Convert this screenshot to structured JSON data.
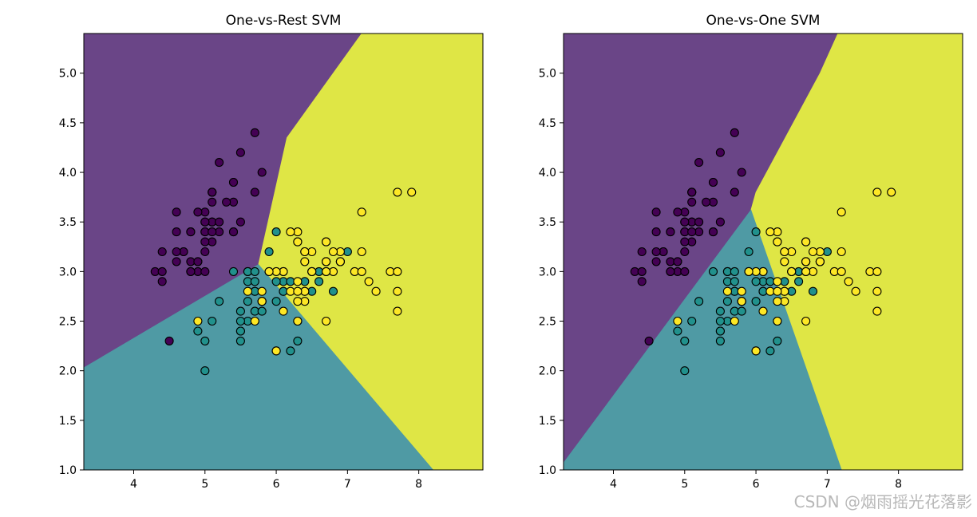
{
  "watermark": "CSDN @烟雨摇光花落影",
  "colors": {
    "region_purple": "#6a4587",
    "region_teal": "#4f9aa4",
    "region_yellow": "#dfe645",
    "pt_purple": "#440154",
    "pt_teal": "#21918c",
    "pt_yellow": "#fde725",
    "edge": "#000000"
  },
  "chart_data": [
    {
      "type": "scatter",
      "title": "One-vs-Rest SVM",
      "xlabel": "",
      "ylabel": "",
      "xlim": [
        3.3,
        8.9
      ],
      "ylim": [
        1.0,
        5.4
      ],
      "x_ticks": [
        4,
        5,
        6,
        7,
        8
      ],
      "y_ticks": [
        1.0,
        1.5,
        2.0,
        2.5,
        3.0,
        3.5,
        4.0,
        4.5,
        5.0
      ],
      "regions": [
        {
          "class": 0,
          "polygon": [
            [
              3.3,
              2.03
            ],
            [
              5.75,
              3.07
            ],
            [
              6.15,
              4.35
            ],
            [
              7.2,
              5.4
            ],
            [
              3.3,
              5.4
            ]
          ]
        },
        {
          "class": 2,
          "polygon": [
            [
              5.75,
              3.07
            ],
            [
              6.15,
              4.35
            ],
            [
              7.2,
              5.4
            ],
            [
              8.9,
              5.4
            ],
            [
              8.9,
              1.0
            ],
            [
              8.2,
              1.0
            ]
          ]
        },
        {
          "class": 1,
          "polygon": [
            [
              3.3,
              1.0
            ],
            [
              8.2,
              1.0
            ],
            [
              5.75,
              3.07
            ],
            [
              3.3,
              2.03
            ]
          ]
        }
      ]
    },
    {
      "type": "scatter",
      "title": "One-vs-One SVM",
      "xlabel": "",
      "ylabel": "",
      "xlim": [
        3.3,
        8.9
      ],
      "ylim": [
        1.0,
        5.4
      ],
      "x_ticks": [
        4,
        5,
        6,
        7,
        8
      ],
      "y_ticks": [
        1.0,
        1.5,
        2.0,
        2.5,
        3.0,
        3.5,
        4.0,
        4.5,
        5.0
      ],
      "regions": [
        {
          "class": 0,
          "polygon": [
            [
              3.3,
              1.07
            ],
            [
              5.93,
              3.62
            ],
            [
              6.0,
              3.8
            ],
            [
              6.9,
              5.0
            ],
            [
              7.15,
              5.4
            ],
            [
              3.3,
              5.4
            ]
          ]
        },
        {
          "class": 2,
          "polygon": [
            [
              5.93,
              3.62
            ],
            [
              6.0,
              3.8
            ],
            [
              6.9,
              5.0
            ],
            [
              7.15,
              5.4
            ],
            [
              8.9,
              5.4
            ],
            [
              8.9,
              1.0
            ],
            [
              7.2,
              1.0
            ]
          ]
        },
        {
          "class": 1,
          "polygon": [
            [
              3.3,
              1.0
            ],
            [
              7.2,
              1.0
            ],
            [
              5.93,
              3.62
            ],
            [
              3.3,
              1.07
            ]
          ]
        }
      ]
    }
  ],
  "points": [
    [
      5.1,
      3.5,
      0
    ],
    [
      4.9,
      3.0,
      0
    ],
    [
      4.7,
      3.2,
      0
    ],
    [
      4.6,
      3.1,
      0
    ],
    [
      5.0,
      3.6,
      0
    ],
    [
      5.4,
      3.9,
      0
    ],
    [
      4.6,
      3.4,
      0
    ],
    [
      5.0,
      3.4,
      0
    ],
    [
      4.4,
      2.9,
      0
    ],
    [
      4.9,
      3.1,
      0
    ],
    [
      5.4,
      3.7,
      0
    ],
    [
      4.8,
      3.4,
      0
    ],
    [
      4.8,
      3.0,
      0
    ],
    [
      4.3,
      3.0,
      0
    ],
    [
      5.8,
      4.0,
      0
    ],
    [
      5.7,
      4.4,
      0
    ],
    [
      5.4,
      3.9,
      0
    ],
    [
      5.1,
      3.5,
      0
    ],
    [
      5.7,
      3.8,
      0
    ],
    [
      5.1,
      3.8,
      0
    ],
    [
      5.4,
      3.4,
      0
    ],
    [
      5.1,
      3.7,
      0
    ],
    [
      4.6,
      3.6,
      0
    ],
    [
      5.1,
      3.3,
      0
    ],
    [
      4.8,
      3.4,
      0
    ],
    [
      5.0,
      3.0,
      0
    ],
    [
      5.0,
      3.4,
      0
    ],
    [
      5.2,
      3.5,
      0
    ],
    [
      5.2,
      3.4,
      0
    ],
    [
      4.7,
      3.2,
      0
    ],
    [
      4.8,
      3.1,
      0
    ],
    [
      5.4,
      3.4,
      0
    ],
    [
      5.2,
      4.1,
      0
    ],
    [
      5.5,
      4.2,
      0
    ],
    [
      4.9,
      3.1,
      0
    ],
    [
      5.0,
      3.2,
      0
    ],
    [
      5.5,
      3.5,
      0
    ],
    [
      4.9,
      3.6,
      0
    ],
    [
      4.4,
      3.0,
      0
    ],
    [
      5.1,
      3.4,
      0
    ],
    [
      5.0,
      3.5,
      0
    ],
    [
      4.5,
      2.3,
      0
    ],
    [
      4.4,
      3.2,
      0
    ],
    [
      5.0,
      3.5,
      0
    ],
    [
      5.1,
      3.8,
      0
    ],
    [
      4.8,
      3.0,
      0
    ],
    [
      5.1,
      3.8,
      0
    ],
    [
      4.6,
      3.2,
      0
    ],
    [
      5.3,
      3.7,
      0
    ],
    [
      5.0,
      3.3,
      0
    ],
    [
      7.0,
      3.2,
      1
    ],
    [
      6.4,
      3.2,
      1
    ],
    [
      6.9,
      3.1,
      1
    ],
    [
      5.5,
      2.3,
      1
    ],
    [
      6.5,
      2.8,
      1
    ],
    [
      5.7,
      2.8,
      1
    ],
    [
      6.3,
      3.3,
      1
    ],
    [
      4.9,
      2.4,
      1
    ],
    [
      6.6,
      2.9,
      1
    ],
    [
      5.2,
      2.7,
      1
    ],
    [
      5.0,
      2.0,
      1
    ],
    [
      5.9,
      3.0,
      1
    ],
    [
      6.0,
      2.2,
      1
    ],
    [
      6.1,
      2.9,
      1
    ],
    [
      5.6,
      2.9,
      1
    ],
    [
      6.7,
      3.1,
      1
    ],
    [
      5.6,
      3.0,
      1
    ],
    [
      5.8,
      2.7,
      1
    ],
    [
      6.2,
      2.2,
      1
    ],
    [
      5.6,
      2.5,
      1
    ],
    [
      5.9,
      3.2,
      1
    ],
    [
      6.1,
      2.8,
      1
    ],
    [
      6.3,
      2.5,
      1
    ],
    [
      6.1,
      2.8,
      1
    ],
    [
      6.4,
      2.9,
      1
    ],
    [
      6.6,
      3.0,
      1
    ],
    [
      6.8,
      2.8,
      1
    ],
    [
      6.7,
      3.0,
      1
    ],
    [
      6.0,
      2.9,
      1
    ],
    [
      5.7,
      2.6,
      1
    ],
    [
      5.5,
      2.4,
      1
    ],
    [
      5.5,
      2.4,
      1
    ],
    [
      5.8,
      2.7,
      1
    ],
    [
      6.0,
      2.7,
      1
    ],
    [
      5.4,
      3.0,
      1
    ],
    [
      6.0,
      3.4,
      1
    ],
    [
      6.7,
      3.1,
      1
    ],
    [
      6.3,
      2.3,
      1
    ],
    [
      5.6,
      3.0,
      1
    ],
    [
      5.5,
      2.5,
      1
    ],
    [
      5.5,
      2.6,
      1
    ],
    [
      6.1,
      3.0,
      1
    ],
    [
      5.8,
      2.6,
      1
    ],
    [
      5.0,
      2.3,
      1
    ],
    [
      5.6,
      2.7,
      1
    ],
    [
      5.7,
      3.0,
      1
    ],
    [
      5.7,
      2.9,
      1
    ],
    [
      6.2,
      2.9,
      1
    ],
    [
      5.1,
      2.5,
      1
    ],
    [
      5.7,
      2.8,
      1
    ],
    [
      6.3,
      3.3,
      2
    ],
    [
      5.8,
      2.7,
      2
    ],
    [
      7.1,
      3.0,
      2
    ],
    [
      6.3,
      2.9,
      2
    ],
    [
      6.5,
      3.0,
      2
    ],
    [
      7.6,
      3.0,
      2
    ],
    [
      4.9,
      2.5,
      2
    ],
    [
      7.3,
      2.9,
      2
    ],
    [
      6.7,
      2.5,
      2
    ],
    [
      7.2,
      3.6,
      2
    ],
    [
      6.5,
      3.2,
      2
    ],
    [
      6.4,
      2.7,
      2
    ],
    [
      6.8,
      3.0,
      2
    ],
    [
      5.7,
      2.5,
      2
    ],
    [
      5.8,
      2.8,
      2
    ],
    [
      6.4,
      3.2,
      2
    ],
    [
      6.5,
      3.0,
      2
    ],
    [
      7.7,
      3.8,
      2
    ],
    [
      7.7,
      2.6,
      2
    ],
    [
      6.0,
      2.2,
      2
    ],
    [
      6.9,
      3.2,
      2
    ],
    [
      5.6,
      2.8,
      2
    ],
    [
      7.7,
      2.8,
      2
    ],
    [
      6.3,
      2.7,
      2
    ],
    [
      6.7,
      3.3,
      2
    ],
    [
      7.2,
      3.2,
      2
    ],
    [
      6.2,
      2.8,
      2
    ],
    [
      6.1,
      3.0,
      2
    ],
    [
      6.4,
      2.8,
      2
    ],
    [
      7.2,
      3.0,
      2
    ],
    [
      7.4,
      2.8,
      2
    ],
    [
      7.9,
      3.8,
      2
    ],
    [
      6.4,
      2.8,
      2
    ],
    [
      6.3,
      2.8,
      2
    ],
    [
      6.1,
      2.6,
      2
    ],
    [
      7.7,
      3.0,
      2
    ],
    [
      6.3,
      3.4,
      2
    ],
    [
      6.4,
      3.1,
      2
    ],
    [
      6.0,
      3.0,
      2
    ],
    [
      6.9,
      3.1,
      2
    ],
    [
      6.7,
      3.1,
      2
    ],
    [
      6.9,
      3.1,
      2
    ],
    [
      5.8,
      2.7,
      2
    ],
    [
      6.8,
      3.2,
      2
    ],
    [
      6.7,
      3.3,
      2
    ],
    [
      6.7,
      3.0,
      2
    ],
    [
      6.3,
      2.5,
      2
    ],
    [
      6.5,
      3.0,
      2
    ],
    [
      6.2,
      3.4,
      2
    ],
    [
      5.9,
      3.0,
      2
    ]
  ]
}
